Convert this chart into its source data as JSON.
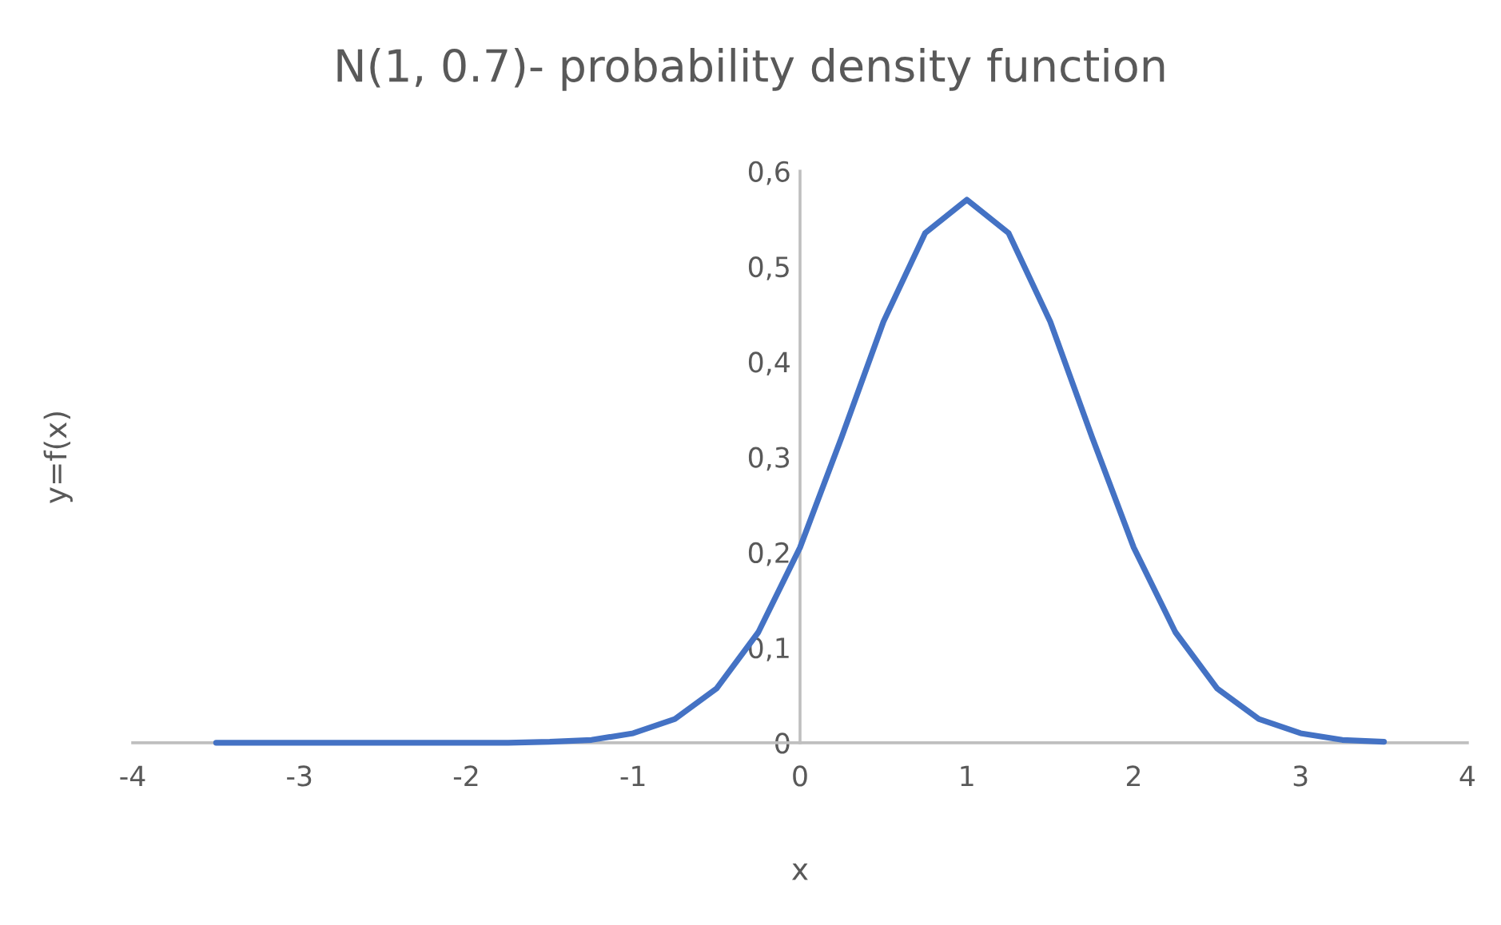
{
  "chart_data": {
    "type": "line",
    "title": "N(1, 0.7)- probability density function",
    "xlabel": "x",
    "ylabel": "y=f(x)",
    "color": "#4472c4",
    "x": [
      -3.5,
      -3,
      -2.5,
      -2,
      -1.75,
      -1.5,
      -1.25,
      -1,
      -0.75,
      -0.5,
      -0.25,
      0,
      0.25,
      0.5,
      0.75,
      1,
      1.25,
      1.5,
      1.75,
      2,
      2.25,
      2.5,
      2.75,
      3,
      3.25,
      3.5
    ],
    "values": [
      0,
      0,
      0,
      0,
      0,
      0.001,
      0.003,
      0.01,
      0.025,
      0.057,
      0.116,
      0.205,
      0.321,
      0.442,
      0.535,
      0.57,
      0.535,
      0.442,
      0.321,
      0.205,
      0.116,
      0.057,
      0.025,
      0.01,
      0.003,
      0.001
    ],
    "xlim": [
      -4,
      4
    ],
    "ylim": [
      0,
      0.6
    ],
    "xticks": [
      -4,
      -3,
      -2,
      -1,
      0,
      1,
      2,
      3,
      4
    ],
    "yticks": [
      0,
      {
        "value": 0.1,
        "label": "0,1"
      },
      {
        "value": 0.2,
        "label": "0,2"
      },
      {
        "value": 0.3,
        "label": "0,3"
      },
      {
        "value": 0.4,
        "label": "0,4"
      },
      {
        "value": 0.5,
        "label": "0,5"
      },
      {
        "value": 0.6,
        "label": "0,6"
      }
    ],
    "grid": false,
    "legend": false,
    "marker": "none",
    "line_style": "solid"
  }
}
